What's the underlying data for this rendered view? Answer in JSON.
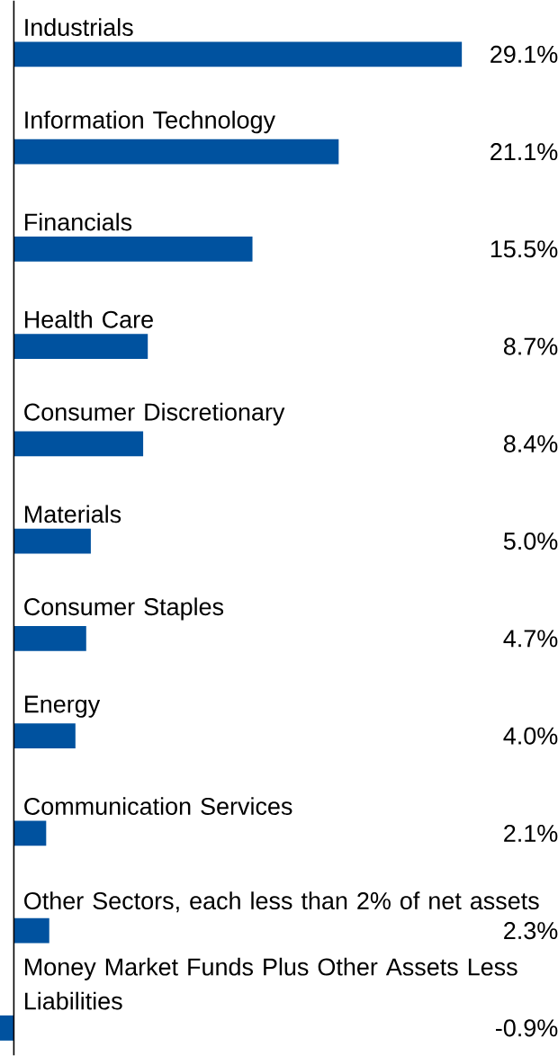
{
  "chart_data": {
    "type": "bar",
    "orientation": "horizontal",
    "categories": [
      "Industrials",
      "Information Technology",
      "Financials",
      "Health Care",
      "Consumer Discretionary",
      "Materials",
      "Consumer Staples",
      "Energy",
      "Communication Services",
      "Other Sectors, each less than 2% of net assets",
      "Money Market Funds Plus Other Assets Less Liabilities"
    ],
    "values": [
      29.1,
      21.1,
      15.5,
      8.7,
      8.4,
      5.0,
      4.7,
      4.0,
      2.1,
      2.3,
      -0.9
    ],
    "value_labels": [
      "29.1%",
      "21.1%",
      "15.5%",
      "8.7%",
      "8.4%",
      "5.0%",
      "4.7%",
      "4.0%",
      "2.1%",
      "2.3%",
      "-0.9%"
    ],
    "color": "#00529f"
  }
}
